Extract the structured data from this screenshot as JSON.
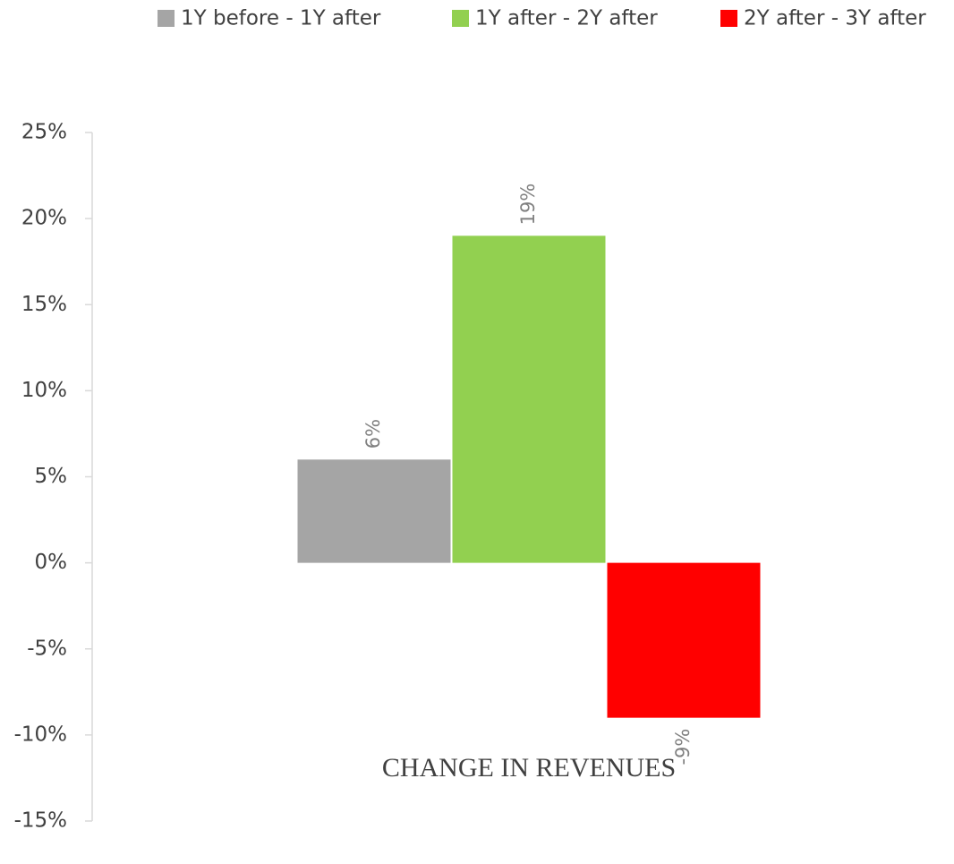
{
  "chart_data": {
    "type": "bar",
    "categories": [
      "CHANGE IN REVENUES"
    ],
    "series": [
      {
        "name": "1Y before - 1Y after",
        "color": "#a5a5a5",
        "values": [
          6
        ],
        "value_labels": [
          "6%"
        ]
      },
      {
        "name": "1Y after - 2Y after",
        "color": "#92d050",
        "values": [
          19
        ],
        "value_labels": [
          "19%"
        ]
      },
      {
        "name": "2Y after - 3Y after",
        "color": "#ff0000",
        "values": [
          -9
        ],
        "value_labels": [
          "-9%"
        ]
      }
    ],
    "ylim": [
      -15,
      25
    ],
    "yticks": [
      {
        "value": -15,
        "label": "-15%"
      },
      {
        "value": -10,
        "label": "-10%"
      },
      {
        "value": -5,
        "label": "-5%"
      },
      {
        "value": 0,
        "label": "0%"
      },
      {
        "value": 5,
        "label": "5%"
      },
      {
        "value": 10,
        "label": "10%"
      },
      {
        "value": 15,
        "label": "15%"
      },
      {
        "value": 20,
        "label": "20%"
      },
      {
        "value": 25,
        "label": "25%"
      }
    ],
    "grid": false,
    "legend": "top"
  }
}
